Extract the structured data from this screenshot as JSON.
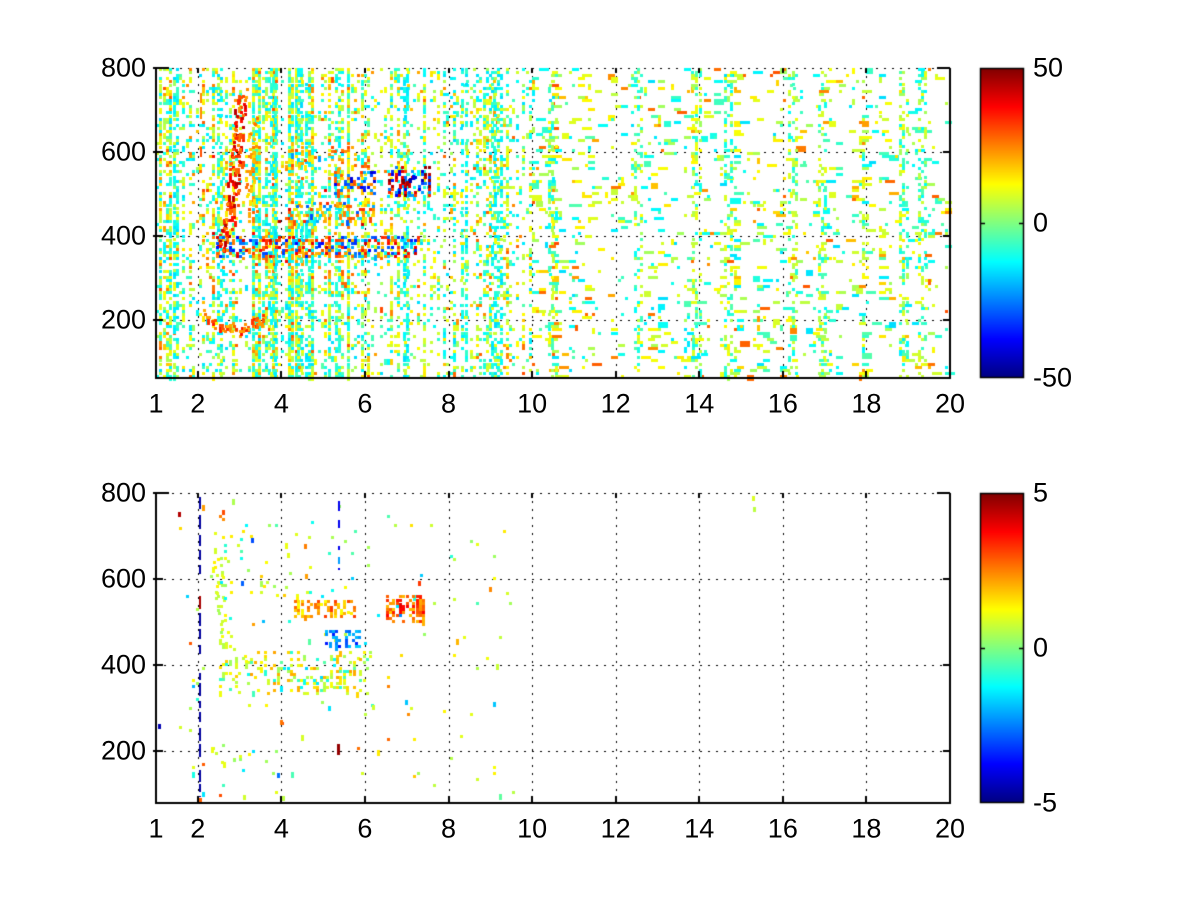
{
  "figure": {
    "background": "#FFFFFF",
    "axis_color": "#000000",
    "grid_color": "#000000",
    "label_color": "#000000",
    "jet_stops": [
      [
        0,
        "#000080"
      ],
      [
        0.125,
        "#0000FF"
      ],
      [
        0.375,
        "#00FFFF"
      ],
      [
        0.5,
        "#80FF80"
      ],
      [
        0.625,
        "#FFFF00"
      ],
      [
        0.75,
        "#FF8000"
      ],
      [
        0.875,
        "#FF0000"
      ],
      [
        1,
        "#800000"
      ]
    ]
  },
  "chart_data": [
    {
      "type": "heatmap",
      "title": "",
      "xlabel": "",
      "ylabel": "",
      "xlim": [
        1,
        20
      ],
      "ylim": [
        63,
        800
      ],
      "xticks": [
        1,
        2,
        4,
        6,
        8,
        10,
        12,
        14,
        16,
        18,
        20
      ],
      "xtick_labels": [
        "1",
        "2",
        "4",
        "6",
        "8",
        "10",
        "12",
        "14",
        "16",
        "18",
        "20"
      ],
      "yticks": [
        200,
        400,
        600,
        800
      ],
      "ytick_labels": [
        "200",
        "400",
        "600",
        "800"
      ],
      "grid": true,
      "colormap": "jet",
      "clim": [
        -50,
        50
      ],
      "colorbar_ticks": [
        50,
        0,
        -50
      ],
      "colorbar_labels": [
        "50",
        "0",
        "-50"
      ],
      "description": "Dense speckled residual heatmap on white; mostly pale-green/cyan noise, dense for x<6 and fading to sparse dashes for x>10; orange ridge curving near x=2.6-3.0 between y=370-750, orange V-arc near y=200, mixed orange/blue horizontal band at y=352-400 for x=2.4-7.2, and a strong red/dark-blue blob near (7,530).",
      "render": {
        "seed": 1337,
        "cell": [
          3.3,
          3.1
        ],
        "dash_from": 10,
        "col_variation": true,
        "base_density": [
          [
            1,
            2.1,
            0.42
          ],
          [
            2.1,
            6.15,
            0.5
          ],
          [
            6.15,
            7.6,
            0.3
          ],
          [
            7.6,
            9.6,
            0.26
          ],
          [
            9.6,
            10.6,
            0.17
          ],
          [
            10.6,
            20,
            0.09
          ]
        ],
        "base_values": {
          "neg_frac": 0.4,
          "vneg": [
            -16,
            -4
          ],
          "vpos": [
            3,
            15
          ],
          "hot_frac": 0.12,
          "vhot": [
            16,
            30
          ]
        },
        "warm_zone": {
          "x": [
            2,
            6.3
          ],
          "y": [
            300,
            630
          ],
          "boost_frac": 0.3,
          "boost": [
            8,
            16
          ]
        },
        "features": [
          {
            "type": "stripes",
            "xs": [
              1.45,
              2.5,
              3.78,
              4.42,
              4.6,
              5.32,
              6.95,
              8.35,
              9.05,
              9.2
            ],
            "halfwidth": 0.045,
            "density": 0.5,
            "pos_frac": 0.25,
            "vpos": [
              4,
              12
            ],
            "vneg": [
              -16,
              -6
            ],
            "y": [
              63,
              800
            ]
          },
          {
            "type": "stripes",
            "xs": [
              10.45,
              12.5,
              13.9,
              14.65,
              16.2,
              16.9,
              18.85,
              19.3
            ],
            "halfwidth": 0.07,
            "density": 0.3,
            "pos_frac": 0.55,
            "vpos": [
              3,
              13
            ],
            "vneg": [
              -13,
              -4
            ],
            "y": [
              63,
              800
            ]
          },
          {
            "type": "curve",
            "points": [
              [
                3.02,
                745
              ],
              [
                2.93,
                640
              ],
              [
                2.86,
                540
              ],
              [
                2.8,
                470
              ],
              [
                2.66,
                408
              ],
              [
                2.5,
                372
              ]
            ],
            "width": 0.14,
            "density": 2.2,
            "vrange": [
              22,
              46
            ]
          },
          {
            "type": "curve",
            "points": [
              [
                3.32,
                690
              ],
              [
                3.27,
                600
              ],
              [
                3.22,
                520
              ],
              [
                3.3,
                462
              ]
            ],
            "width": 0.1,
            "density": 1.1,
            "vrange": [
              14,
              28
            ]
          },
          {
            "type": "curve",
            "points": [
              [
                2.2,
                218
              ],
              [
                2.55,
                190
              ],
              [
                2.95,
                178
              ],
              [
                3.3,
                196
              ],
              [
                3.6,
                212
              ]
            ],
            "width": 0.12,
            "density": 1.8,
            "vrange": [
              18,
              36
            ]
          },
          {
            "type": "band",
            "x": [
              2.35,
              7.25
            ],
            "y": [
              352,
              400
            ],
            "density": 0.5,
            "pos_frac": 0.55,
            "vpos": [
              18,
              42
            ],
            "vneg": [
              -38,
              -12
            ]
          },
          {
            "type": "band",
            "x": [
              4.2,
              6.2
            ],
            "y": [
              432,
              482
            ],
            "density": 0.38,
            "pos_frac": 0.62,
            "vpos": [
              14,
              34
            ],
            "vneg": [
              -30,
              -10
            ]
          },
          {
            "type": "band",
            "x": [
              5.25,
              6.2
            ],
            "y": [
              502,
              556
            ],
            "density": 0.45,
            "pos_frac": 0.35,
            "vpos": [
              16,
              32
            ],
            "vneg": [
              -42,
              -18
            ]
          },
          {
            "type": "band",
            "x": [
              6.55,
              7.5
            ],
            "y": [
              498,
              566
            ],
            "density": 0.6,
            "pos_frac": 0.55,
            "vpos": [
              28,
              50
            ],
            "vneg": [
              -45,
              -20
            ]
          },
          {
            "type": "band",
            "x": [
              4.0,
              6.1
            ],
            "y": [
              560,
              606
            ],
            "density": 0.22,
            "pos_frac": 0.8,
            "vpos": [
              14,
              30
            ],
            "vneg": [
              -24,
              -10
            ]
          },
          {
            "type": "vline",
            "x": 2.07,
            "y": [
              560,
              798
            ],
            "width": 2,
            "dash": [
              16,
              5
            ],
            "value": 24,
            "alt_value": 30,
            "alt_frac": 0.3
          },
          {
            "type": "dots",
            "items": [
              [
                6.92,
                532,
                50
              ],
              [
                7.0,
                527,
                46
              ],
              [
                7.08,
                534,
                -46
              ],
              [
                6.85,
                519,
                40
              ],
              [
                7.15,
                540,
                -40
              ]
            ]
          }
        ]
      }
    },
    {
      "type": "heatmap",
      "title": "",
      "xlabel": "",
      "ylabel": "",
      "xlim": [
        1,
        20
      ],
      "ylim": [
        80,
        800
      ],
      "xticks": [
        1,
        2,
        4,
        6,
        8,
        10,
        12,
        14,
        16,
        18,
        20
      ],
      "xtick_labels": [
        "1",
        "2",
        "4",
        "6",
        "8",
        "10",
        "12",
        "14",
        "16",
        "18",
        "20"
      ],
      "yticks": [
        200,
        400,
        600,
        800
      ],
      "ytick_labels": [
        "200",
        "400",
        "600",
        "800"
      ],
      "grid": true,
      "colormap": "jet",
      "clim": [
        -5,
        5
      ],
      "colorbar_ticks": [
        5,
        0,
        -5
      ],
      "colorbar_labels": [
        "5",
        "0",
        "-5"
      ],
      "description": "Mostly empty white heatmap with sparse features: a dark-blue dashed vertical line at x=2.05 spanning y=95-790 (with a few dark-red segments), green speckle band for x=3.1-6.1 at y=330-430, yellow/orange clusters near y=520-550 at x=4.3-5.8 and x=6.5-7.4, blue dashes near (5.4,460) and a blue dashed segment at x=5.4 y=620-780, a dark-red dash at x=5.4 y=180-250, and isolated dots near (9,310), (9,578) and (15.3,780).",
      "render": {
        "seed": 2024,
        "cell": [
          3.3,
          3.1
        ],
        "dash_from": 99,
        "col_variation": false,
        "base_density": [
          [
            1.5,
            9.6,
            0.012
          ]
        ],
        "base_region": {
          "y": [
            95,
            785
          ]
        },
        "base_values": {
          "neg_frac": 0.25,
          "vneg": [
            -2,
            -0.3
          ],
          "vpos": [
            0.2,
            1.6
          ],
          "hot_frac": 0.08,
          "vhot": [
            1.6,
            3
          ]
        },
        "features": [
          {
            "type": "band",
            "x": [
              3.1,
              6.15
            ],
            "y": [
              332,
              432
            ],
            "density": 0.26,
            "pos_frac": 0.86,
            "vpos": [
              0.3,
              2.2
            ],
            "vneg": [
              -1.6,
              -0.3
            ]
          },
          {
            "type": "band",
            "x": [
              2.5,
              3.2
            ],
            "y": [
              340,
              420
            ],
            "density": 0.3,
            "pos_frac": 0.85,
            "vpos": [
              0.2,
              1.8
            ],
            "vneg": [
              -1.2,
              -0.3
            ]
          },
          {
            "type": "curve",
            "points": [
              [
                2.42,
                665
              ],
              [
                2.5,
                560
              ],
              [
                2.62,
                480
              ],
              [
                2.78,
                428
              ]
            ],
            "width": 0.12,
            "density": 1.0,
            "vrange": [
              0.2,
              1.4
            ]
          },
          {
            "type": "curve",
            "points": [
              [
                2.25,
                212
              ],
              [
                2.5,
                186
              ],
              [
                2.8,
                172
              ],
              [
                3.02,
                186
              ]
            ],
            "width": 0.1,
            "density": 0.7,
            "vrange": [
              0.2,
              1.2
            ]
          },
          {
            "type": "band",
            "x": [
              4.3,
              5.8
            ],
            "y": [
              512,
              552
            ],
            "density": 0.5,
            "pos_frac": 0.95,
            "vpos": [
              1.2,
              3.2
            ],
            "vneg": [
              -2,
              -0.8
            ]
          },
          {
            "type": "band",
            "x": [
              6.5,
              7.4
            ],
            "y": [
              498,
              562
            ],
            "density": 0.6,
            "pos_frac": 0.95,
            "vpos": [
              1.8,
              3.8
            ],
            "vneg": [
              -2.5,
              -1
            ]
          },
          {
            "type": "band",
            "x": [
              5.05,
              5.9
            ],
            "y": [
              445,
              482
            ],
            "density": 0.45,
            "pos_frac": 0.08,
            "vpos": [
              1,
              2
            ],
            "vneg": [
              -3.6,
              -1.6
            ]
          },
          {
            "type": "band",
            "x": [
              2.3,
              3.25
            ],
            "y": [
              555,
              710
            ],
            "density": 0.1,
            "pos_frac": 0.8,
            "vpos": [
              0.2,
              1.5
            ],
            "vneg": [
              -1.5,
              -0.3
            ]
          },
          {
            "type": "band",
            "x": [
              3.4,
              4.7
            ],
            "y": [
              555,
              645
            ],
            "density": 0.08,
            "pos_frac": 0.85,
            "vpos": [
              0.3,
              1.8
            ],
            "vneg": [
              -1.2,
              -0.2
            ]
          },
          {
            "type": "vline",
            "x": 2.05,
            "y": [
              95,
              790
            ],
            "width": 2,
            "dash": [
              10,
              4
            ],
            "value": -4.7,
            "alt_value": 4.6,
            "alt_frac": 0.17
          },
          {
            "type": "vline",
            "x": 5.37,
            "y": [
              620,
              782
            ],
            "width": 2,
            "dash": [
              7,
              8
            ],
            "value": -3.9,
            "alt_value": -2.2,
            "alt_frac": 0.3
          },
          {
            "type": "vline",
            "x": 5.37,
            "y": [
              178,
              252
            ],
            "width": 3,
            "dash": [
              11,
              9
            ],
            "value": 4.8,
            "alt_value": 4.2,
            "alt_frac": 0.3
          },
          {
            "type": "dots",
            "items": [
              [
                1.07,
                258,
                -4.5
              ],
              [
                1.55,
                751,
                4.5
              ],
              [
                3.98,
                267,
                2.6
              ],
              [
                6.98,
                314,
                -1.8
              ],
              [
                9.1,
                310,
                -1.8
              ],
              [
                9.0,
                578,
                2.4
              ],
              [
                15.28,
                788,
                0.9
              ],
              [
                15.32,
                764,
                0.6
              ],
              [
                2.05,
                88,
                2.8
              ],
              [
                2.12,
                100,
                -1.5
              ],
              [
                3.93,
                146,
                -2.6
              ],
              [
                2.6,
                756,
                3.0
              ],
              [
                4.57,
                676,
                2.5
              ],
              [
                3.3,
                690,
                -3.0
              ],
              [
                4.15,
                655,
                1.0
              ],
              [
                4.6,
                608,
                2.2
              ],
              [
                3.05,
                590,
                -2.8
              ],
              [
                3.1,
                95,
                0.8
              ],
              [
                4.05,
                92,
                0.6
              ],
              [
                5.15,
                300,
                -1.5
              ],
              [
                6.2,
                302,
                0.8
              ],
              [
                7.3,
                590,
                3.2
              ],
              [
                6.85,
                540,
                4.0
              ]
            ]
          }
        ]
      }
    }
  ]
}
